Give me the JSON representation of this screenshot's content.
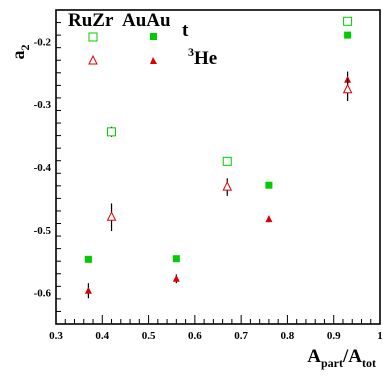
{
  "chart_data": {
    "type": "scatter",
    "xlabel": {
      "main": "A",
      "sub1": "part",
      "sep": "/A",
      "sub2": "tot"
    },
    "ylabel": {
      "main": "a",
      "sub": "2"
    },
    "xlim": [
      0.3,
      1.0
    ],
    "ylim": [
      -0.65,
      -0.15
    ],
    "x_ticks": [
      "0.3",
      "0.4",
      "0.5",
      "0.6",
      "0.7",
      "0.8",
      "0.9",
      "1"
    ],
    "y_ticks": [
      "-0.2",
      "-0.3",
      "-0.4",
      "-0.5",
      "-0.6"
    ],
    "legend": {
      "col1": "RuZr",
      "col2": "AuAu",
      "row1_suffix": "t",
      "row2_sup": "3",
      "row2_label": "He"
    },
    "colors": {
      "green": "#00cc00",
      "red": "#dd0000",
      "error": "#000000"
    },
    "series": [
      {
        "system": "AuAu",
        "particle": "t",
        "marker": "filled-square",
        "color": "#00cc00",
        "points": [
          {
            "x": 0.37,
            "y": -0.547,
            "err": 0.0
          },
          {
            "x": 0.56,
            "y": -0.546,
            "err": 0.0
          },
          {
            "x": 0.76,
            "y": -0.429,
            "err": 0.0
          },
          {
            "x": 0.93,
            "y": -0.19,
            "err": 0.0
          }
        ]
      },
      {
        "system": "RuZr",
        "particle": "t",
        "marker": "open-square",
        "color": "#00cc00",
        "points": [
          {
            "x": 0.42,
            "y": -0.344,
            "err": 0.008
          },
          {
            "x": 0.67,
            "y": -0.391,
            "err": 0.0
          },
          {
            "x": 0.93,
            "y": -0.168,
            "err": 0.0
          }
        ]
      },
      {
        "system": "AuAu",
        "particle": "3He",
        "marker": "filled-triangle",
        "color": "#dd0000",
        "points": [
          {
            "x": 0.37,
            "y": -0.597,
            "err": 0.012
          },
          {
            "x": 0.56,
            "y": -0.578,
            "err": 0.007
          },
          {
            "x": 0.76,
            "y": -0.483,
            "err": 0.005
          },
          {
            "x": 0.93,
            "y": -0.261,
            "err": 0.013
          }
        ]
      },
      {
        "system": "RuZr",
        "particle": "3He",
        "marker": "open-triangle",
        "color": "#dd0000",
        "points": [
          {
            "x": 0.42,
            "y": -0.48,
            "err": 0.022
          },
          {
            "x": 0.67,
            "y": -0.432,
            "err": 0.014
          },
          {
            "x": 0.93,
            "y": -0.277,
            "err": 0.018
          }
        ]
      }
    ]
  }
}
